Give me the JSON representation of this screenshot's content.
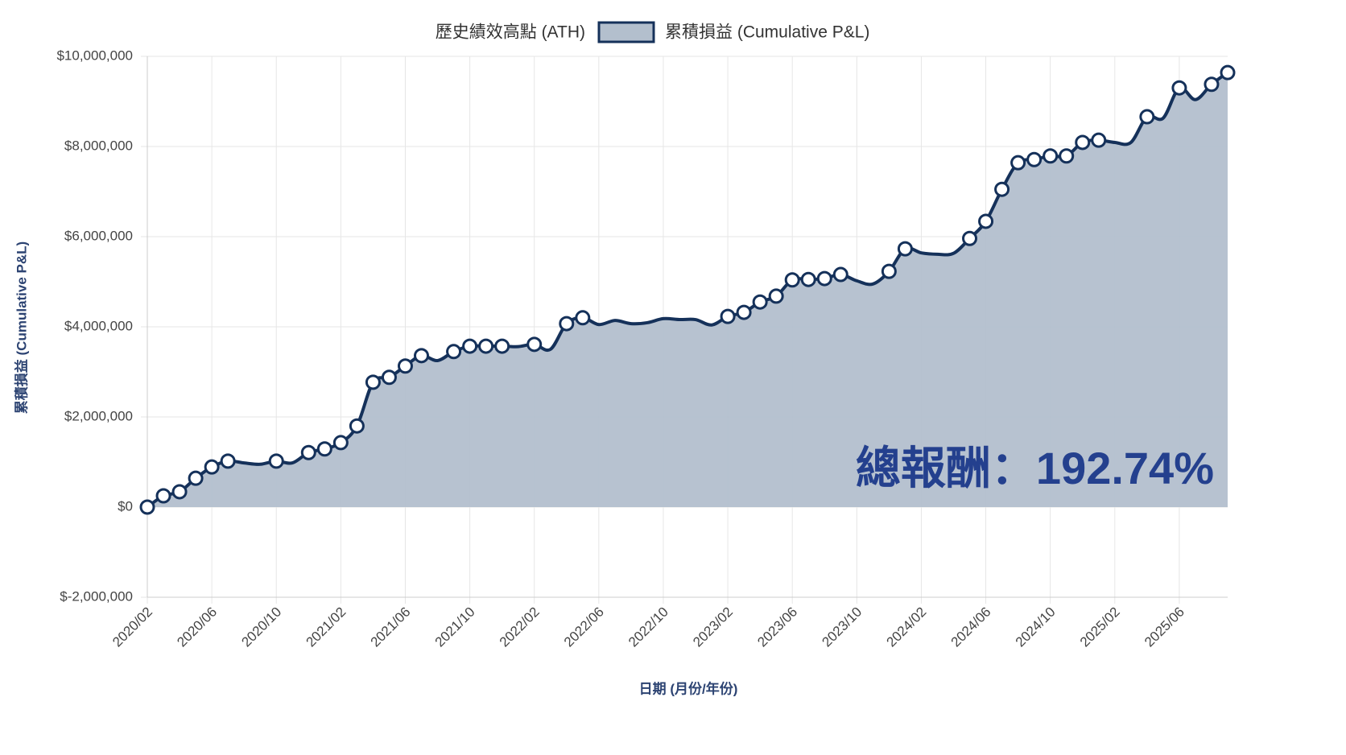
{
  "chart_data": {
    "type": "line",
    "title_annotation": "總報酬：192.74%",
    "x_label": "日期 (月份/年份)",
    "y_label": "累積損益 (Cumulative P&L)",
    "categories": [
      "2020/02",
      null,
      null,
      null,
      "2020/06",
      null,
      null,
      null,
      "2020/10",
      null,
      null,
      null,
      "2021/02",
      null,
      null,
      null,
      "2021/06",
      null,
      null,
      null,
      "2021/10",
      null,
      null,
      null,
      "2022/02",
      null,
      null,
      null,
      "2022/06",
      null,
      null,
      null,
      "2022/10",
      null,
      null,
      null,
      "2023/02",
      null,
      null,
      null,
      "2023/06",
      null,
      null,
      null,
      "2023/10",
      null,
      null,
      null,
      "2024/02",
      null,
      null,
      null,
      "2024/06",
      null,
      null,
      null,
      "2024/10",
      null,
      null,
      null,
      "2025/02",
      null,
      null,
      null,
      "2025/06",
      null,
      null,
      null
    ],
    "series": [
      {
        "name": "歷史績效高點 (ATH)",
        "color": "#15315a",
        "marker_fill": "#ffffff",
        "values": [
          0,
          250000,
          340000,
          640000,
          890000,
          1020000,
          null,
          null,
          1020000,
          null,
          1210000,
          1290000,
          1430000,
          1800000,
          2770000,
          2880000,
          3130000,
          3360000,
          null,
          3450000,
          3570000,
          3570000,
          3570000,
          null,
          3610000,
          null,
          4070000,
          4200000,
          null,
          null,
          null,
          null,
          null,
          null,
          null,
          null,
          4230000,
          4320000,
          4550000,
          4680000,
          5040000,
          5050000,
          5070000,
          5160000,
          null,
          null,
          5230000,
          5730000,
          null,
          null,
          null,
          5960000,
          6340000,
          7050000,
          7640000,
          7710000,
          7790000,
          7790000,
          8090000,
          8140000,
          null,
          null,
          8660000,
          null,
          9300000,
          null,
          9380000,
          9640000
        ]
      },
      {
        "name": "累積損益 (Cumulative P&L)",
        "color": "#15315a",
        "fill": "#b3bfcd",
        "values": [
          0,
          250000,
          340000,
          640000,
          890000,
          1020000,
          980000,
          950000,
          1020000,
          980000,
          1210000,
          1290000,
          1430000,
          1800000,
          2770000,
          2880000,
          3130000,
          3360000,
          3250000,
          3450000,
          3570000,
          3570000,
          3570000,
          3560000,
          3610000,
          3500000,
          4070000,
          4200000,
          4050000,
          4140000,
          4070000,
          4090000,
          4180000,
          4160000,
          4160000,
          4040000,
          4230000,
          4320000,
          4550000,
          4680000,
          5040000,
          5050000,
          5070000,
          5160000,
          5020000,
          4950000,
          5230000,
          5730000,
          5640000,
          5610000,
          5630000,
          5960000,
          6340000,
          7050000,
          7640000,
          7710000,
          7790000,
          7790000,
          8090000,
          8140000,
          8090000,
          8090000,
          8660000,
          8630000,
          9300000,
          9040000,
          9380000,
          9640000
        ]
      }
    ],
    "ylim": [
      -2000000,
      10000000
    ],
    "yticks": [
      {
        "value": -2000000,
        "label": "$-2,000,000"
      },
      {
        "value": 0,
        "label": "$0"
      },
      {
        "value": 2000000,
        "label": "$2,000,000"
      },
      {
        "value": 4000000,
        "label": "$4,000,000"
      },
      {
        "value": 6000000,
        "label": "$6,000,000"
      },
      {
        "value": 8000000,
        "label": "$8,000,000"
      },
      {
        "value": 10000000,
        "label": "$10,000,000"
      }
    ],
    "grid": true,
    "legend": "top",
    "annotation_color": "#24408e"
  }
}
